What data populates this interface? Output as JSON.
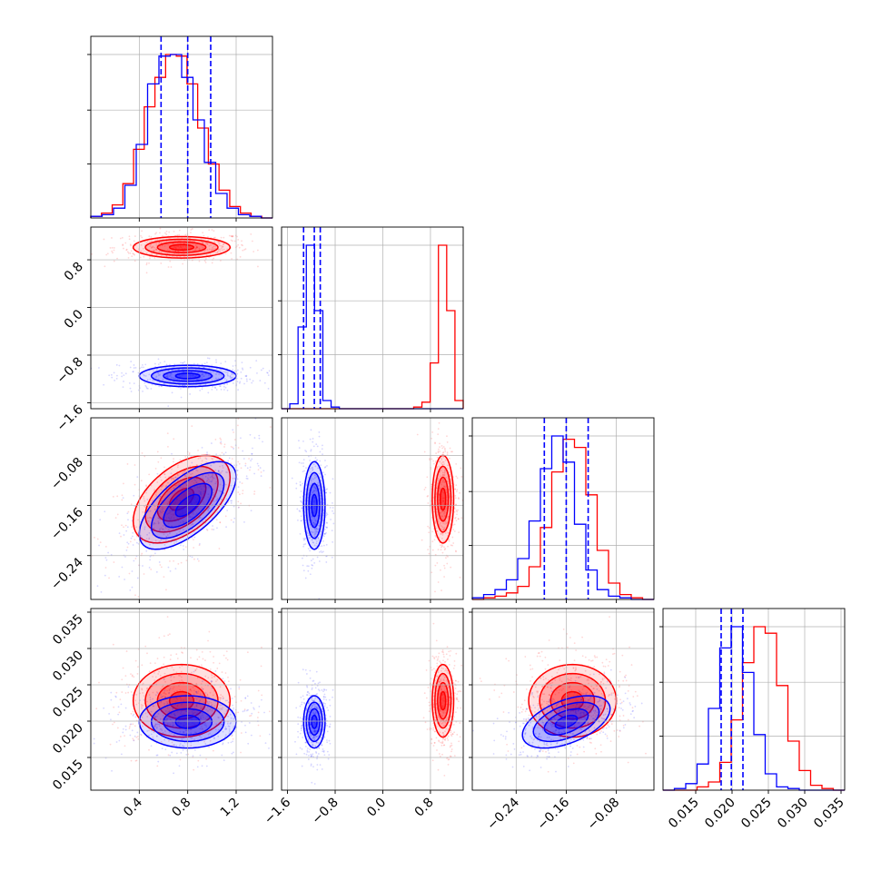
{
  "colors": {
    "series_a": "#ff0000",
    "series_b": "#0000ff",
    "grid": "#b0b0b0",
    "frame": "#000000"
  },
  "chart_data": {
    "type": "corner",
    "n_params": 4,
    "grid": true,
    "title": "",
    "series": [
      {
        "color": "#ff0000",
        "hist_tops": [
          [
            0.01,
            0.03,
            0.08,
            0.21,
            0.42,
            0.68,
            0.86,
            1.0,
            0.99,
            0.82,
            0.55,
            0.33,
            0.17,
            0.07,
            0.03,
            0.01,
            0.0
          ],
          [
            0.0,
            0.0,
            0.0,
            0.0,
            0.0,
            0.0,
            0.0,
            0.0,
            0.0,
            0.0,
            0.0,
            0.0,
            0.0,
            0.0,
            0.0,
            0.0,
            0.01,
            0.04,
            0.28,
            1.0,
            0.6,
            0.05
          ],
          [
            0.0,
            0.01,
            0.02,
            0.04,
            0.08,
            0.2,
            0.44,
            0.78,
            0.98,
            0.93,
            0.64,
            0.3,
            0.1,
            0.03,
            0.01,
            0.0
          ],
          [
            0.0,
            0.0,
            0.0,
            0.02,
            0.05,
            0.17,
            0.43,
            0.78,
            1.0,
            0.96,
            0.64,
            0.3,
            0.12,
            0.03,
            0.01,
            0.0
          ]
        ],
        "centers": [
          0.75,
          1.01,
          -0.15,
          0.0228
        ],
        "sigmas": [
          0.2,
          0.09,
          0.035,
          0.0025
        ],
        "correlations": {
          "0-2": 0.5,
          "0-3": 0.0,
          "1-2": 0.0,
          "1-3": 0.0,
          "2-3": 0.0
        }
      },
      {
        "color": "#0000ff",
        "hist_tops": [
          [
            0.01,
            0.02,
            0.06,
            0.2,
            0.45,
            0.82,
            0.99,
            1.0,
            0.86,
            0.6,
            0.34,
            0.15,
            0.06,
            0.02,
            0.01,
            0.0
          ],
          [
            0.0,
            0.03,
            0.5,
            1.0,
            0.6,
            0.05,
            0.01,
            0.0,
            0.0,
            0.0,
            0.0,
            0.0,
            0.0,
            0.0,
            0.0,
            0.0,
            0.0,
            0.0,
            0.0,
            0.0,
            0.0,
            0.0
          ],
          [
            0.01,
            0.03,
            0.06,
            0.12,
            0.25,
            0.48,
            0.8,
            1.0,
            0.84,
            0.46,
            0.18,
            0.06,
            0.02,
            0.01,
            0.0,
            0.0
          ],
          [
            0.0,
            0.01,
            0.04,
            0.16,
            0.5,
            0.87,
            1.0,
            0.72,
            0.34,
            0.1,
            0.02,
            0.01,
            0.0,
            0.0,
            0.0,
            0.0
          ]
        ],
        "centers": [
          0.8,
          -1.15,
          -0.16,
          0.0199
        ],
        "sigmas": [
          0.2,
          0.09,
          0.035,
          0.0018
        ],
        "correlations": {
          "0-2": 0.65,
          "0-3": 0.0,
          "1-2": 0.0,
          "1-3": 0.0,
          "2-3": 0.5
        }
      }
    ],
    "quantiles_blue": [
      [
        0.58,
        0.8,
        0.99
      ],
      [
        -1.33,
        -1.15,
        -1.05
      ],
      [
        -0.195,
        -0.16,
        -0.125
      ],
      [
        0.0185,
        0.0199,
        0.0215
      ]
    ],
    "axes": [
      {
        "range": [
          0.0,
          1.5
        ],
        "ticks": [
          0.4,
          0.8,
          1.2
        ],
        "tick_labels": [
          "0.4",
          "0.8",
          "1.2"
        ]
      },
      {
        "range": [
          -1.7,
          1.35
        ],
        "ticks": [
          -1.6,
          -0.8,
          0.0,
          0.8
        ],
        "tick_labels": [
          "−1.6",
          "−0.8",
          "0.0",
          "0.8"
        ]
      },
      {
        "range": [
          -0.31,
          -0.02
        ],
        "ticks": [
          -0.24,
          -0.16,
          -0.08
        ],
        "tick_labels": [
          "−0.24",
          "−0.16",
          "−0.08"
        ]
      },
      {
        "range": [
          0.0105,
          0.0355
        ],
        "ticks": [
          0.015,
          0.02,
          0.025,
          0.03,
          0.035
        ],
        "tick_labels": [
          "0.015",
          "0.020",
          "0.025",
          "0.030",
          "0.035"
        ]
      }
    ]
  }
}
